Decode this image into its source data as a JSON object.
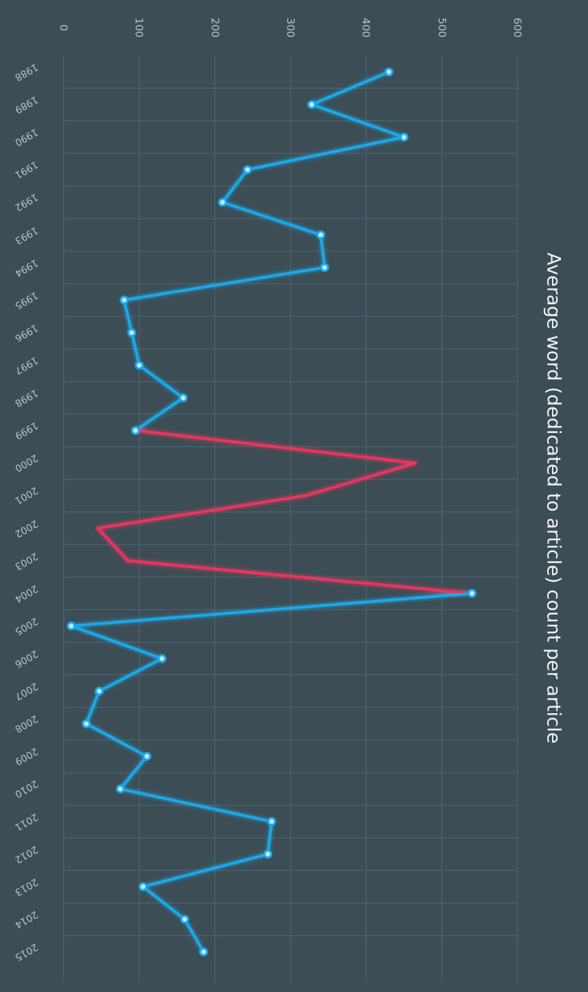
{
  "chart_data": {
    "type": "line",
    "title": "Average word (dedicated to article) count per article",
    "xlabel": "",
    "ylabel": "",
    "ylim": [
      0,
      600
    ],
    "y_ticks": [
      0,
      100,
      200,
      300,
      400,
      500,
      600
    ],
    "categories": [
      "1988",
      "1989",
      "1990",
      "1991",
      "1992",
      "1993",
      "1994",
      "1995",
      "1996",
      "1997",
      "1998",
      "1999",
      "2000",
      "2001",
      "2002",
      "2003",
      "2004",
      "2005",
      "2006",
      "2007",
      "2008",
      "2009",
      "2010",
      "2011",
      "2012",
      "2013",
      "2014",
      "2015"
    ],
    "values": [
      430,
      328,
      450,
      243,
      210,
      340,
      345,
      80,
      90,
      100,
      158,
      95,
      465,
      320,
      45,
      85,
      540,
      10,
      130,
      47,
      30,
      110,
      75,
      275,
      270,
      105,
      160,
      185
    ],
    "grid": true,
    "series_colors": {
      "base": "#1aa8e8",
      "highlight": "#e8365e"
    },
    "highlight_range": [
      "1999",
      "2004"
    ]
  }
}
